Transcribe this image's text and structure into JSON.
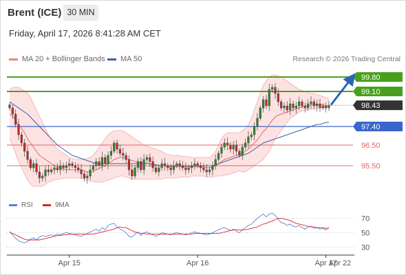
{
  "header": {
    "title": "Brent (ICE)",
    "timeframe": "30 MIN",
    "datetime": "Friday, April 17, 2026 8:41:28 AM CET"
  },
  "legend": {
    "bollinger": {
      "label": "MA 20 + Bollinger Bands",
      "color": "#f08080"
    },
    "ma50": {
      "label": "MA 50",
      "color": "#3a5fa0"
    },
    "credit": "Research © 2026 Trading Central"
  },
  "rsi_legend": {
    "rsi": {
      "label": "RSI",
      "color": "#5b7fd6"
    },
    "ma9": {
      "label": "9MA",
      "color": "#e02020"
    }
  },
  "colors": {
    "resistance": "#4aa01e",
    "pivot": "#3a66cc",
    "support": "#e06464",
    "current": "#333333",
    "arrow": "#2a66b8",
    "band_fill": "#fde2e2",
    "candle_up": "#2a8a2a",
    "candle_down": "#c62828"
  },
  "chart_data": [
    {
      "type": "candlestick",
      "y_range": [
        94.6,
        100.2
      ],
      "x_labels": [
        "Apr 15",
        "Apr 16",
        "Apr 17",
        "Apr 22"
      ],
      "key_levels": [
        {
          "value": 99.8,
          "label": "99.80",
          "kind": "resistance"
        },
        {
          "value": 99.1,
          "label": "99.10",
          "kind": "resistance"
        },
        {
          "value": 98.43,
          "label": "98.43",
          "kind": "current"
        },
        {
          "value": 97.4,
          "label": "97.40",
          "kind": "pivot"
        },
        {
          "value": 96.5,
          "label": "96.50",
          "kind": "support"
        },
        {
          "value": 95.5,
          "label": "95.50",
          "kind": "support"
        }
      ],
      "forecast_arrow": {
        "from": 98.45,
        "to": 99.75
      },
      "close": [
        98.3,
        98.0,
        97.5,
        97.0,
        96.6,
        96.2,
        95.8,
        95.4,
        95.6,
        95.2,
        94.9,
        95.0,
        95.3,
        95.2,
        95.3,
        95.4,
        95.3,
        95.5,
        95.4,
        95.5,
        95.6,
        95.5,
        95.4,
        95.3,
        95.1,
        94.9,
        95.0,
        95.3,
        95.5,
        95.7,
        95.5,
        95.9,
        95.6,
        96.0,
        96.2,
        96.6,
        96.3,
        96.1,
        96.0,
        95.8,
        95.3,
        95.0,
        95.4,
        95.7,
        95.3,
        95.8,
        95.9,
        95.7,
        95.4,
        95.2,
        95.4,
        95.6,
        95.5,
        95.4,
        95.3,
        95.5,
        95.6,
        95.5,
        95.4,
        95.3,
        95.4,
        95.5,
        95.6,
        95.5,
        95.4,
        95.3,
        95.2,
        95.3,
        95.5,
        95.8,
        96.1,
        96.4,
        96.6,
        96.5,
        96.3,
        96.5,
        96.2,
        96.0,
        96.4,
        96.6,
        96.9,
        97.0,
        97.4,
        97.8,
        98.3,
        98.7,
        98.4,
        99.2,
        99.3,
        99.0,
        98.6,
        98.3,
        98.4,
        98.2,
        98.5,
        98.3,
        98.4,
        98.6,
        98.4,
        98.3,
        98.5,
        98.6,
        98.4,
        98.5,
        98.3,
        98.4,
        98.3,
        98.43
      ],
      "ma20": [
        98.0,
        97.9,
        97.7,
        97.5,
        97.3,
        97.1,
        96.8,
        96.6,
        96.4,
        96.2,
        96.0,
        95.9,
        95.8,
        95.7,
        95.6,
        95.5,
        95.45,
        95.4,
        95.35,
        95.3,
        95.3,
        95.3,
        95.3,
        95.3,
        95.3,
        95.25,
        95.2,
        95.2,
        95.2,
        95.3,
        95.35,
        95.45,
        95.5,
        95.6,
        95.7,
        95.8,
        95.85,
        95.9,
        95.9,
        95.85,
        95.8,
        95.75,
        95.7,
        95.7,
        95.65,
        95.65,
        95.6,
        95.6,
        95.55,
        95.5,
        95.5,
        95.5,
        95.5,
        95.45,
        95.45,
        95.45,
        95.45,
        95.45,
        95.45,
        95.45,
        95.45,
        95.45,
        95.45,
        95.45,
        95.45,
        95.45,
        95.4,
        95.4,
        95.45,
        95.5,
        95.6,
        95.7,
        95.8,
        95.85,
        95.9,
        95.95,
        96.0,
        96.05,
        96.1,
        96.2,
        96.3,
        96.45,
        96.6,
        96.75,
        96.95,
        97.15,
        97.3,
        97.5,
        97.7,
        97.85,
        97.95,
        98.0,
        98.05,
        98.1,
        98.15,
        98.2,
        98.25,
        98.3,
        98.35,
        98.4,
        98.4,
        98.45,
        98.45,
        98.45,
        98.45,
        98.45,
        98.4,
        98.4
      ],
      "bb_upper": [
        99.2,
        99.3,
        99.3,
        99.3,
        99.2,
        99.1,
        99.0,
        98.8,
        98.5,
        98.2,
        97.9,
        97.6,
        97.3,
        97.0,
        96.7,
        96.5,
        96.3,
        96.2,
        96.1,
        96.0,
        95.9,
        95.85,
        95.8,
        95.8,
        95.8,
        95.8,
        95.85,
        95.9,
        96.0,
        96.2,
        96.4,
        96.6,
        96.8,
        97.0,
        97.1,
        97.2,
        97.2,
        97.2,
        97.2,
        97.1,
        97.0,
        96.9,
        96.8,
        96.7,
        96.6,
        96.5,
        96.45,
        96.4,
        96.35,
        96.3,
        96.25,
        96.2,
        96.1,
        96.05,
        96.0,
        96.0,
        96.0,
        96.0,
        95.95,
        95.95,
        95.95,
        95.9,
        95.9,
        95.9,
        95.9,
        95.9,
        95.9,
        95.9,
        96.0,
        96.2,
        96.5,
        96.8,
        97.0,
        97.1,
        97.1,
        97.1,
        97.1,
        97.1,
        97.2,
        97.3,
        97.5,
        97.8,
        98.2,
        98.6,
        99.0,
        99.4,
        99.6,
        99.8,
        99.9,
        99.9,
        99.85,
        99.8,
        99.7,
        99.6,
        99.5,
        99.4,
        99.3,
        99.2,
        99.15,
        99.1,
        99.05,
        99.0,
        99.0,
        98.95,
        98.9,
        98.85,
        98.8,
        98.75
      ],
      "bb_lower": [
        96.8,
        96.5,
        96.1,
        95.7,
        95.4,
        95.1,
        94.8,
        94.6,
        94.5,
        94.5,
        94.5,
        94.5,
        94.6,
        94.7,
        94.75,
        94.8,
        94.85,
        94.85,
        94.9,
        94.9,
        94.9,
        94.9,
        94.9,
        94.9,
        94.9,
        94.85,
        94.8,
        94.75,
        94.75,
        94.7,
        94.7,
        94.7,
        94.75,
        94.8,
        94.85,
        94.9,
        94.95,
        95.0,
        95.0,
        94.95,
        94.9,
        94.85,
        94.85,
        94.85,
        94.85,
        94.85,
        94.85,
        94.85,
        94.85,
        94.85,
        94.85,
        94.85,
        94.9,
        94.9,
        94.9,
        94.9,
        94.9,
        94.95,
        94.95,
        94.95,
        94.95,
        95.0,
        95.0,
        95.0,
        95.0,
        95.0,
        94.95,
        94.95,
        94.95,
        95.0,
        95.0,
        95.0,
        95.05,
        95.05,
        95.1,
        95.15,
        95.2,
        95.25,
        95.2,
        95.2,
        95.3,
        95.4,
        95.5,
        95.6,
        95.7,
        95.8,
        96.0,
        96.2,
        96.5,
        96.8,
        97.0,
        97.2,
        97.4,
        97.6,
        97.8,
        97.9,
        98.0,
        98.1,
        98.15,
        98.2,
        98.2,
        98.25,
        98.25,
        98.3,
        98.3,
        98.3,
        98.3,
        98.3
      ],
      "ma50": [
        98.6,
        98.5,
        98.4,
        98.3,
        98.2,
        98.1,
        98.0,
        97.85,
        97.7,
        97.55,
        97.4,
        97.25,
        97.1,
        96.95,
        96.8,
        96.65,
        96.5,
        96.4,
        96.3,
        96.2,
        96.1,
        96.0,
        95.95,
        95.9,
        95.85,
        95.8,
        95.75,
        95.7,
        95.65,
        95.6,
        95.6,
        95.6,
        95.6,
        95.6,
        95.6,
        95.6,
        95.6,
        95.6,
        95.6,
        95.6,
        95.6,
        95.6,
        95.6,
        95.6,
        95.6,
        95.6,
        95.6,
        95.6,
        95.55,
        95.55,
        95.5,
        95.5,
        95.5,
        95.5,
        95.5,
        95.5,
        95.5,
        95.5,
        95.5,
        95.5,
        95.5,
        95.5,
        95.5,
        95.5,
        95.5,
        95.5,
        95.5,
        95.5,
        95.5,
        95.55,
        95.6,
        95.65,
        95.7,
        95.75,
        95.8,
        95.85,
        95.9,
        95.95,
        96.0,
        96.05,
        96.1,
        96.2,
        96.3,
        96.4,
        96.5,
        96.6,
        96.65,
        96.7,
        96.75,
        96.8,
        96.85,
        96.9,
        96.95,
        97.0,
        97.05,
        97.1,
        97.15,
        97.2,
        97.25,
        97.3,
        97.35,
        97.4,
        97.45,
        97.5,
        97.5,
        97.55,
        97.6,
        97.6
      ]
    },
    {
      "type": "line",
      "name": "RSI",
      "y_range": [
        20,
        80
      ],
      "y_ticks": [
        70,
        50,
        30
      ],
      "rsi": [
        52,
        47,
        42,
        39,
        37,
        36,
        38,
        41,
        43,
        40,
        44,
        46,
        45,
        46,
        47,
        46,
        48,
        47,
        49,
        50,
        49,
        48,
        47,
        46,
        45,
        47,
        49,
        51,
        53,
        55,
        52,
        57,
        54,
        60,
        62,
        63,
        58,
        55,
        53,
        50,
        45,
        44,
        48,
        51,
        46,
        50,
        51,
        49,
        47,
        45,
        47,
        50,
        49,
        48,
        47,
        49,
        50,
        49,
        48,
        47,
        48,
        50,
        51,
        50,
        49,
        48,
        47,
        48,
        50,
        52,
        54,
        56,
        57,
        55,
        53,
        55,
        52,
        50,
        54,
        57,
        60,
        62,
        66,
        70,
        73,
        76,
        72,
        76,
        77,
        74,
        69,
        64,
        63,
        60,
        62,
        59,
        58,
        60,
        57,
        55,
        58,
        59,
        56,
        57,
        55,
        56,
        54,
        57
      ],
      "ma9": [
        50,
        49,
        47,
        45,
        43,
        41,
        40,
        40,
        40,
        40,
        40,
        41,
        42,
        43,
        44,
        45,
        46,
        46,
        47,
        47,
        48,
        48,
        48,
        48,
        48,
        48,
        48,
        48,
        48,
        49,
        50,
        51,
        52,
        53,
        54,
        55,
        57,
        58,
        57,
        57,
        55,
        53,
        51,
        50,
        49,
        49,
        48,
        48,
        48,
        48,
        48,
        48,
        48,
        48,
        48,
        48,
        48,
        48,
        48,
        48,
        48,
        48,
        49,
        49,
        49,
        49,
        49,
        49,
        49,
        49,
        49,
        50,
        51,
        52,
        53,
        54,
        54,
        54,
        54,
        54,
        55,
        56,
        57,
        58,
        60,
        62,
        63,
        65,
        66,
        68,
        70,
        70,
        69,
        68,
        67,
        65,
        63,
        62,
        61,
        60,
        59,
        58,
        58,
        57,
        57,
        57,
        56,
        56
      ]
    }
  ]
}
